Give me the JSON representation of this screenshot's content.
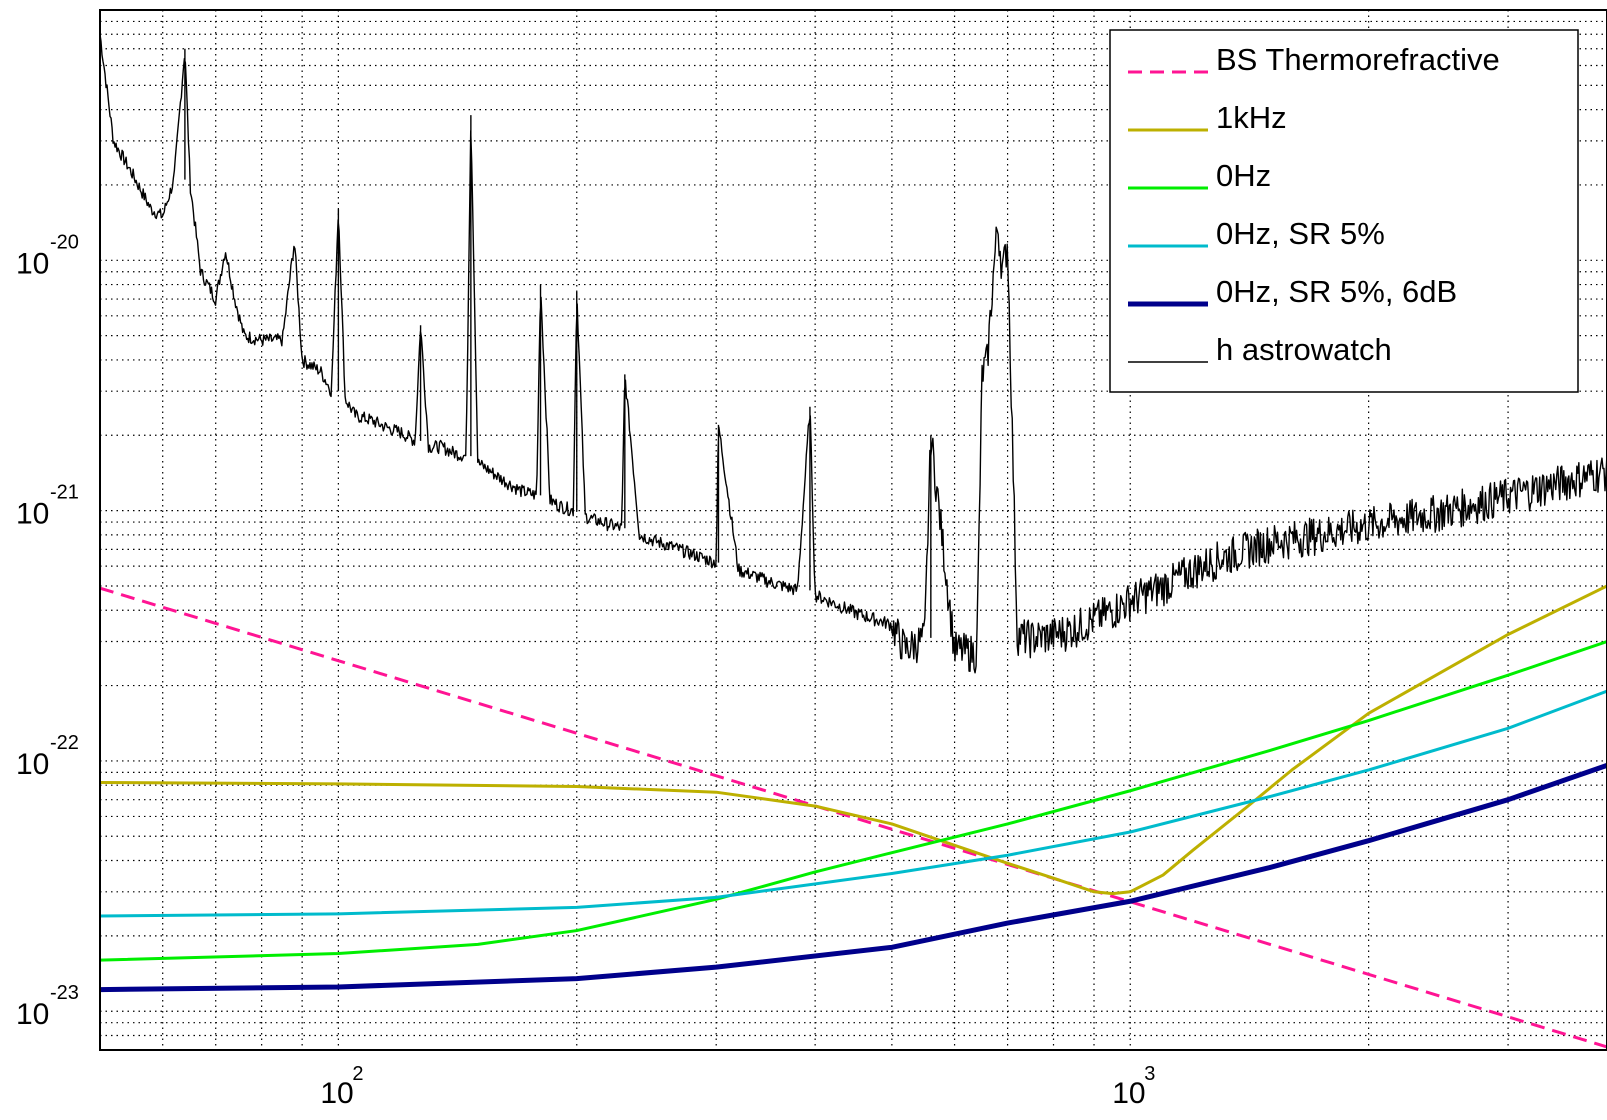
{
  "chart_data": {
    "type": "line",
    "title": "",
    "xlabel": "",
    "ylabel": "",
    "x_scale": "log",
    "y_scale": "log",
    "xlim": [
      50,
      4000
    ],
    "ylim": [
      7e-24,
      1e-19
    ],
    "grid": true,
    "legend_position": "top-right",
    "x_ticks": [
      {
        "value": 100,
        "base": "10",
        "exp": "2"
      },
      {
        "value": 1000,
        "base": "10",
        "exp": "3"
      }
    ],
    "y_ticks": [
      {
        "value": 1e-20,
        "base": "10",
        "exp": "-20"
      },
      {
        "value": 1e-21,
        "base": "10",
        "exp": "-21"
      },
      {
        "value": 1e-22,
        "base": "10",
        "exp": "-22"
      },
      {
        "value": 1e-23,
        "base": "10",
        "exp": "-23"
      }
    ],
    "series": [
      {
        "name": "BS Thermorefractive",
        "color": "#ff1493",
        "dashed": true,
        "width": 3,
        "x": [
          50,
          4000
        ],
        "y": [
          4.9e-22,
          7.2e-24
        ]
      },
      {
        "name": "1kHz",
        "color": "#bdb000",
        "dashed": false,
        "width": 3,
        "x": [
          50,
          100,
          200,
          300,
          400,
          500,
          600,
          700,
          800,
          900,
          950,
          1000,
          1100,
          1200,
          1400,
          1600,
          2000,
          3000,
          4000
        ],
        "y": [
          8.2e-23,
          8.1e-23,
          7.9e-23,
          7.5e-23,
          6.6e-23,
          5.6e-23,
          4.6e-23,
          3.9e-23,
          3.4e-23,
          3e-23,
          2.95e-23,
          3e-23,
          3.5e-23,
          4.4e-23,
          6.5e-23,
          9.2e-23,
          1.55e-22,
          3.2e-22,
          5e-22
        ]
      },
      {
        "name": "0Hz",
        "color": "#00ee00",
        "dashed": false,
        "width": 3,
        "x": [
          50,
          100,
          150,
          200,
          300,
          400,
          500,
          700,
          1000,
          1500,
          2000,
          3000,
          4000
        ],
        "y": [
          1.6e-23,
          1.7e-23,
          1.85e-23,
          2.1e-23,
          2.8e-23,
          3.6e-23,
          4.3e-23,
          5.6e-23,
          7.6e-23,
          1.1e-22,
          1.45e-22,
          2.2e-22,
          3e-22
        ]
      },
      {
        "name": "0Hz, SR 5%",
        "color": "#00bbcc",
        "dashed": false,
        "width": 3,
        "x": [
          50,
          100,
          200,
          300,
          500,
          700,
          1000,
          1500,
          2000,
          3000,
          4000
        ],
        "y": [
          2.4e-23,
          2.45e-23,
          2.6e-23,
          2.85e-23,
          3.55e-23,
          4.2e-23,
          5.2e-23,
          7.2e-23,
          9.2e-23,
          1.35e-22,
          1.9e-22
        ]
      },
      {
        "name": "0Hz, SR 5%, 6dB",
        "color": "#00008b",
        "dashed": false,
        "width": 5,
        "x": [
          50,
          100,
          200,
          300,
          500,
          700,
          1000,
          1500,
          2000,
          3000,
          4000
        ],
        "y": [
          1.22e-23,
          1.25e-23,
          1.35e-23,
          1.5e-23,
          1.8e-23,
          2.25e-23,
          2.75e-23,
          3.75e-23,
          4.8e-23,
          7e-23,
          9.6e-23
        ]
      },
      {
        "name": "h astrowatch",
        "color": "#000000",
        "dashed": false,
        "width": 1.4,
        "noise": true,
        "x": [
          50,
          52,
          55,
          58,
          60,
          62,
          64,
          65,
          67,
          70,
          72,
          74,
          76,
          80,
          85,
          88,
          90,
          95,
          98,
          100,
          102,
          105,
          110,
          115,
          120,
          125,
          127,
          130,
          135,
          140,
          145,
          147,
          150,
          155,
          160,
          170,
          178,
          180,
          185,
          190,
          198,
          200,
          205,
          210,
          220,
          228,
          230,
          240,
          250,
          260,
          280,
          300,
          302,
          320,
          340,
          350,
          380,
          394,
          400,
          420,
          450,
          500,
          520,
          550,
          560,
          600,
          640,
          650,
          660,
          670,
          680,
          690,
          700,
          720,
          750,
          800,
          850,
          900,
          950,
          1000,
          1100,
          1200,
          1300,
          1400,
          1500,
          1700,
          2000,
          2500,
          3000,
          3500,
          4000
        ],
        "y": [
          8e-20,
          3e-20,
          2.2e-20,
          1.6e-20,
          1.5e-20,
          2.1e-20,
          7e-20,
          2e-20,
          9e-21,
          7e-21,
          1.1e-20,
          7e-21,
          5e-21,
          4.8e-21,
          4.8e-21,
          1.2e-20,
          4e-21,
          3.6e-21,
          3e-21,
          1.6e-20,
          2.8e-21,
          2.4e-21,
          2.3e-21,
          2.15e-21,
          2.05e-21,
          1.9e-21,
          5.5e-21,
          1.8e-21,
          1.8e-21,
          1.7e-21,
          1.65e-21,
          3.8e-20,
          1.55e-21,
          1.45e-21,
          1.35e-21,
          1.2e-21,
          1.15e-21,
          8e-21,
          1.1e-21,
          1.05e-21,
          1e-21,
          7.5e-21,
          9.5e-22,
          9.2e-22,
          8.8e-22,
          8.5e-22,
          3.5e-21,
          8e-22,
          7.6e-22,
          7.3e-22,
          6.7e-22,
          6.2e-22,
          2.2e-21,
          5.8e-22,
          5.4e-22,
          5.2e-22,
          4.8e-22,
          2.6e-21,
          4.6e-22,
          4.3e-22,
          3.9e-22,
          3.5e-22,
          2.8e-22,
          3.1e-22,
          2e-21,
          2.8e-22,
          2.7e-22,
          3.5e-21,
          4e-21,
          8e-21,
          1.4e-20,
          9e-21,
          1.2e-20,
          3.2e-22,
          3.1e-22,
          3.2e-22,
          3.4e-22,
          3.7e-22,
          4e-22,
          4.4e-22,
          5e-22,
          5.8e-22,
          6.5e-22,
          7e-22,
          7.5e-22,
          8e-22,
          8.8e-22,
          1e-21,
          1.15e-21,
          1.3e-21,
          1.45e-21
        ]
      }
    ]
  }
}
